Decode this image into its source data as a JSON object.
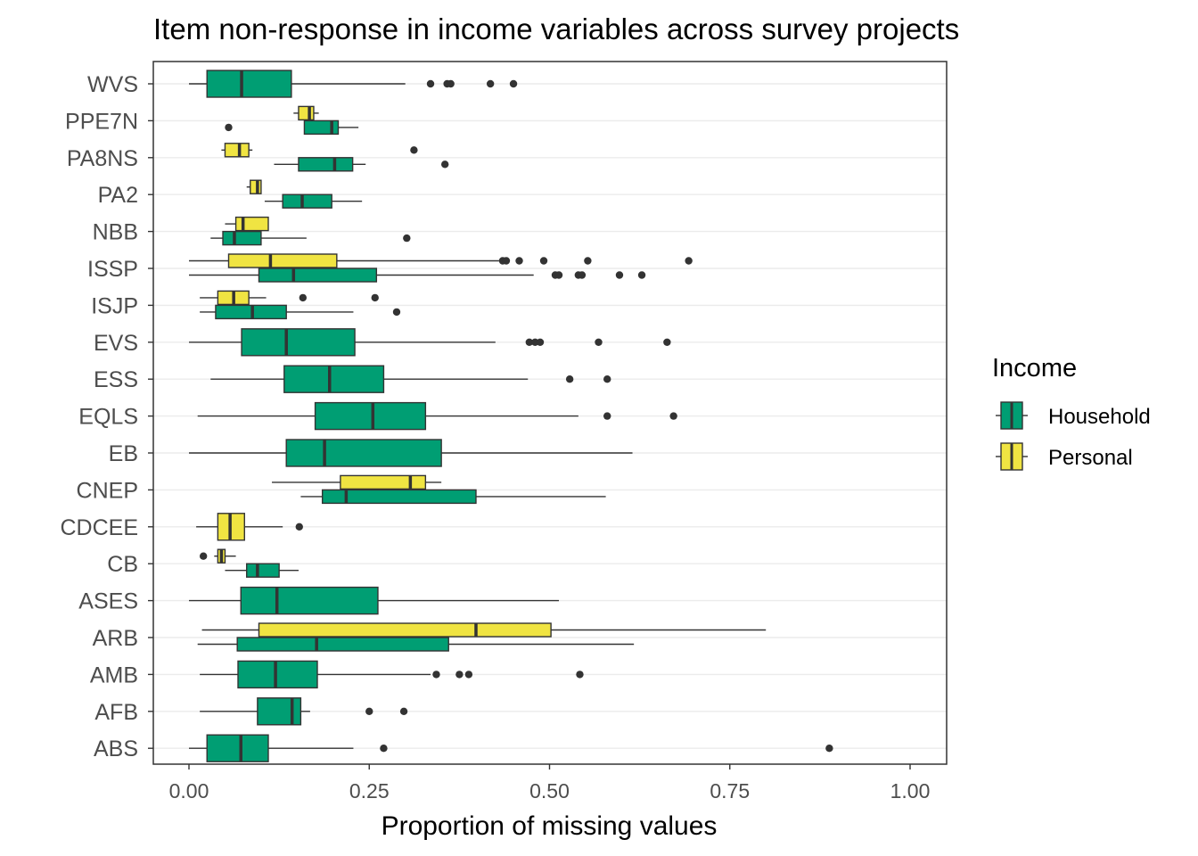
{
  "chart_data": {
    "type": "boxplot",
    "orientation": "horizontal",
    "title": "Item non-response in income variables across survey projects",
    "xlabel": "Proportion of missing values",
    "ylabel": "",
    "xlim": [
      0,
      1
    ],
    "x_ticks": [
      0,
      0.25,
      0.5,
      0.75,
      1
    ],
    "x_tick_labels": [
      "0.00",
      "0.25",
      "0.50",
      "0.75",
      "1.00"
    ],
    "grid": "horizontal major lines",
    "legend": {
      "title": "Income",
      "position": "right",
      "entries": [
        {
          "name": "Household",
          "color": "#009E73"
        },
        {
          "name": "Personal",
          "color": "#F0E442"
        }
      ]
    },
    "categories": [
      "WVS",
      "PPE7N",
      "PA8NS",
      "PA2",
      "NBB",
      "ISSP",
      "ISJP",
      "EVS",
      "ESS",
      "EQLS",
      "EB",
      "CNEP",
      "CDCEE",
      "CB",
      "ASES",
      "ARB",
      "AMB",
      "AFB",
      "ABS"
    ],
    "boxes": [
      {
        "category": "WVS",
        "group": "Household",
        "whisker_low": 0.0,
        "q1": 0.025,
        "median": 0.073,
        "q3": 0.142,
        "whisker_high": 0.3,
        "outliers": [
          0.335,
          0.358,
          0.363,
          0.418,
          0.45
        ]
      },
      {
        "category": "PPE7N",
        "group": "Personal",
        "whisker_low": 0.145,
        "q1": 0.152,
        "median": 0.167,
        "q3": 0.173,
        "whisker_high": 0.18,
        "outliers": []
      },
      {
        "category": "PPE7N",
        "group": "Household",
        "whisker_low": 0.16,
        "q1": 0.16,
        "median": 0.198,
        "q3": 0.207,
        "whisker_high": 0.235,
        "outliers": [
          0.055
        ]
      },
      {
        "category": "PA8NS",
        "group": "Personal",
        "whisker_low": 0.045,
        "q1": 0.05,
        "median": 0.07,
        "q3": 0.083,
        "whisker_high": 0.088,
        "outliers": [
          0.312
        ]
      },
      {
        "category": "PA8NS",
        "group": "Household",
        "whisker_low": 0.118,
        "q1": 0.152,
        "median": 0.202,
        "q3": 0.227,
        "whisker_high": 0.245,
        "outliers": [
          0.355
        ]
      },
      {
        "category": "PA2",
        "group": "Personal",
        "whisker_low": 0.08,
        "q1": 0.085,
        "median": 0.095,
        "q3": 0.1,
        "whisker_high": 0.1,
        "outliers": []
      },
      {
        "category": "PA2",
        "group": "Household",
        "whisker_low": 0.105,
        "q1": 0.13,
        "median": 0.157,
        "q3": 0.198,
        "whisker_high": 0.24,
        "outliers": []
      },
      {
        "category": "NBB",
        "group": "Personal",
        "whisker_low": 0.05,
        "q1": 0.065,
        "median": 0.075,
        "q3": 0.11,
        "whisker_high": 0.11,
        "outliers": []
      },
      {
        "category": "NBB",
        "group": "Household",
        "whisker_low": 0.03,
        "q1": 0.047,
        "median": 0.063,
        "q3": 0.1,
        "whisker_high": 0.163,
        "outliers": [
          0.302
        ]
      },
      {
        "category": "ISSP",
        "group": "Personal",
        "whisker_low": 0.0,
        "q1": 0.055,
        "median": 0.113,
        "q3": 0.205,
        "whisker_high": 0.43,
        "outliers": [
          0.435,
          0.44,
          0.458,
          0.492,
          0.553,
          0.693
        ]
      },
      {
        "category": "ISSP",
        "group": "Household",
        "whisker_low": 0.0,
        "q1": 0.097,
        "median": 0.145,
        "q3": 0.26,
        "whisker_high": 0.478,
        "outliers": [
          0.508,
          0.513,
          0.54,
          0.545,
          0.597,
          0.628
        ]
      },
      {
        "category": "ISJP",
        "group": "Personal",
        "whisker_low": 0.015,
        "q1": 0.04,
        "median": 0.062,
        "q3": 0.083,
        "whisker_high": 0.107,
        "outliers": [
          0.158,
          0.258
        ]
      },
      {
        "category": "ISJP",
        "group": "Household",
        "whisker_low": 0.015,
        "q1": 0.037,
        "median": 0.088,
        "q3": 0.135,
        "whisker_high": 0.228,
        "outliers": [
          0.288
        ]
      },
      {
        "category": "EVS",
        "group": "Household",
        "whisker_low": 0.0,
        "q1": 0.073,
        "median": 0.135,
        "q3": 0.23,
        "whisker_high": 0.425,
        "outliers": [
          0.472,
          0.48,
          0.487,
          0.568,
          0.663
        ]
      },
      {
        "category": "ESS",
        "group": "Household",
        "whisker_low": 0.03,
        "q1": 0.132,
        "median": 0.195,
        "q3": 0.27,
        "whisker_high": 0.47,
        "outliers": [
          0.528,
          0.58
        ]
      },
      {
        "category": "EQLS",
        "group": "Household",
        "whisker_low": 0.012,
        "q1": 0.175,
        "median": 0.255,
        "q3": 0.328,
        "whisker_high": 0.54,
        "outliers": [
          0.58,
          0.672
        ]
      },
      {
        "category": "EB",
        "group": "Household",
        "whisker_low": 0.0,
        "q1": 0.135,
        "median": 0.188,
        "q3": 0.35,
        "whisker_high": 0.615,
        "outliers": []
      },
      {
        "category": "CNEP",
        "group": "Personal",
        "whisker_low": 0.115,
        "q1": 0.21,
        "median": 0.307,
        "q3": 0.328,
        "whisker_high": 0.35,
        "outliers": []
      },
      {
        "category": "CNEP",
        "group": "Household",
        "whisker_low": 0.155,
        "q1": 0.185,
        "median": 0.218,
        "q3": 0.398,
        "whisker_high": 0.578,
        "outliers": []
      },
      {
        "category": "CDCEE",
        "group": "Personal",
        "whisker_low": 0.01,
        "q1": 0.04,
        "median": 0.057,
        "q3": 0.077,
        "whisker_high": 0.13,
        "outliers": [
          0.153
        ]
      },
      {
        "category": "CB",
        "group": "Personal",
        "whisker_low": 0.035,
        "q1": 0.04,
        "median": 0.045,
        "q3": 0.05,
        "whisker_high": 0.065,
        "outliers": [
          0.02
        ]
      },
      {
        "category": "CB",
        "group": "Household",
        "whisker_low": 0.05,
        "q1": 0.08,
        "median": 0.095,
        "q3": 0.125,
        "whisker_high": 0.152,
        "outliers": []
      },
      {
        "category": "ASES",
        "group": "Household",
        "whisker_low": 0.0,
        "q1": 0.072,
        "median": 0.122,
        "q3": 0.262,
        "whisker_high": 0.513,
        "outliers": []
      },
      {
        "category": "ARB",
        "group": "Personal",
        "whisker_low": 0.018,
        "q1": 0.097,
        "median": 0.398,
        "q3": 0.502,
        "whisker_high": 0.8,
        "outliers": []
      },
      {
        "category": "ARB",
        "group": "Household",
        "whisker_low": 0.012,
        "q1": 0.067,
        "median": 0.177,
        "q3": 0.36,
        "whisker_high": 0.617,
        "outliers": []
      },
      {
        "category": "AMB",
        "group": "Household",
        "whisker_low": 0.015,
        "q1": 0.068,
        "median": 0.12,
        "q3": 0.178,
        "whisker_high": 0.335,
        "outliers": [
          0.343,
          0.375,
          0.388,
          0.542
        ]
      },
      {
        "category": "AFB",
        "group": "Household",
        "whisker_low": 0.015,
        "q1": 0.095,
        "median": 0.143,
        "q3": 0.155,
        "whisker_high": 0.168,
        "outliers": [
          0.25,
          0.298
        ]
      },
      {
        "category": "ABS",
        "group": "Household",
        "whisker_low": 0.0,
        "q1": 0.025,
        "median": 0.072,
        "q3": 0.11,
        "whisker_high": 0.228,
        "outliers": [
          0.27,
          0.888
        ]
      }
    ]
  }
}
